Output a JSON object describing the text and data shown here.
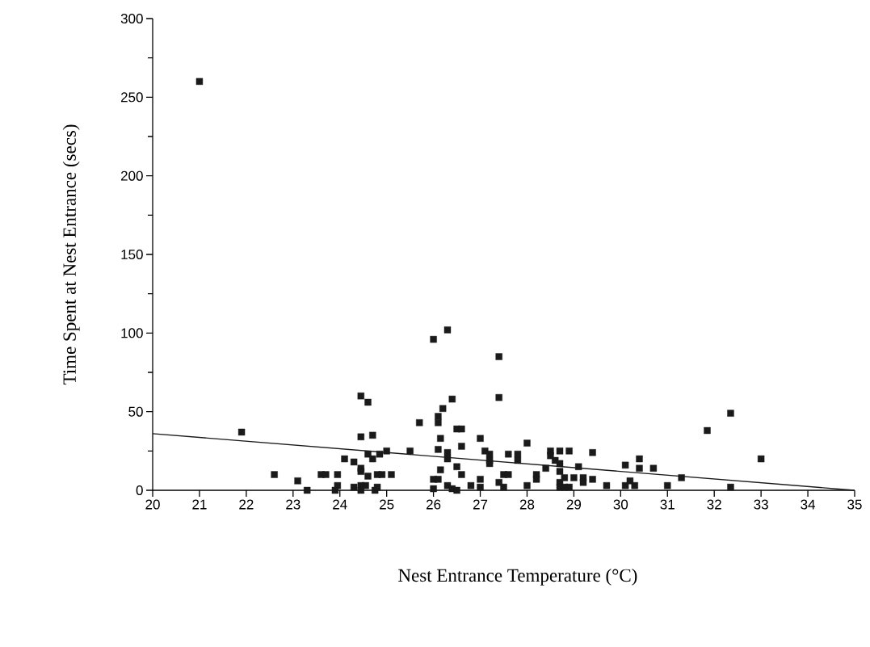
{
  "chart_data": {
    "type": "scatter",
    "xlabel": "Nest Entrance Temperature (°C)",
    "ylabel": "Time Spent at Nest Entrance (secs)",
    "xlim": [
      20,
      35
    ],
    "ylim": [
      0,
      300
    ],
    "xticks": [
      20,
      21,
      22,
      23,
      24,
      25,
      26,
      27,
      28,
      29,
      30,
      31,
      32,
      33,
      34,
      35
    ],
    "yticks": [
      0,
      50,
      100,
      150,
      200,
      250,
      300
    ],
    "grid": false,
    "marker": "square",
    "series": [
      {
        "color": "#1a1a1a",
        "x": [
          21.0,
          21.9,
          22.6,
          23.1,
          23.3,
          23.6,
          23.7,
          23.95,
          23.95,
          23.9,
          24.1,
          24.3,
          24.45,
          24.6,
          24.45,
          24.7,
          24.6,
          24.7,
          24.45,
          24.45,
          24.6,
          24.8,
          24.3,
          24.45,
          24.55,
          24.45,
          24.75,
          24.85,
          25.0,
          24.9,
          25.1,
          24.8,
          25.5,
          25.7,
          26.0,
          26.3,
          26.2,
          26.4,
          26.1,
          26.1,
          26.15,
          26.1,
          26.3,
          26.3,
          26.6,
          26.5,
          26.6,
          26.15,
          26.5,
          26.6,
          26.0,
          26.1,
          26.0,
          26.3,
          26.4,
          26.5,
          26.8,
          27.0,
          27.0,
          27.0,
          27.1,
          27.2,
          27.2,
          27.2,
          27.4,
          27.4,
          27.4,
          27.5,
          27.5,
          27.6,
          27.6,
          27.8,
          27.8,
          28.0,
          28.0,
          28.2,
          28.2,
          28.4,
          28.5,
          28.5,
          28.7,
          28.6,
          28.7,
          28.9,
          28.7,
          28.7,
          28.7,
          28.8,
          28.8,
          28.9,
          29.0,
          29.1,
          29.2,
          29.2,
          29.4,
          29.4,
          29.7,
          30.1,
          30.1,
          30.2,
          30.3,
          30.4,
          30.4,
          30.7,
          31.0,
          31.3,
          31.85,
          32.35,
          32.35,
          33.0
        ],
        "values": [
          260,
          37,
          10,
          6,
          0,
          10,
          10,
          10,
          3,
          0,
          20,
          18,
          60,
          56,
          34,
          35,
          23,
          20,
          14,
          12,
          9,
          10,
          2,
          3,
          3,
          0,
          0,
          23,
          25,
          10,
          10,
          2,
          25,
          43,
          96,
          102,
          52,
          58,
          47,
          43,
          33,
          26,
          24,
          20,
          28,
          39,
          39,
          13,
          15,
          10,
          7,
          7,
          1,
          3,
          1,
          0,
          3,
          33,
          7,
          2,
          25,
          23,
          19,
          17,
          85,
          59,
          5,
          2,
          10,
          10,
          23,
          23,
          19,
          30,
          3,
          10,
          7,
          14,
          25,
          22,
          25,
          19,
          17,
          25,
          12,
          5,
          2,
          8,
          2,
          2,
          8,
          15,
          8,
          5,
          24,
          7,
          3,
          16,
          3,
          6,
          3,
          20,
          14,
          14,
          3,
          8,
          38,
          49,
          2,
          20
        ]
      },
      {
        "type": "line",
        "color": "#1a1a1a",
        "marker": "none",
        "line_style": "solid",
        "x": [
          20,
          35
        ],
        "values": [
          36,
          0
        ]
      }
    ]
  }
}
